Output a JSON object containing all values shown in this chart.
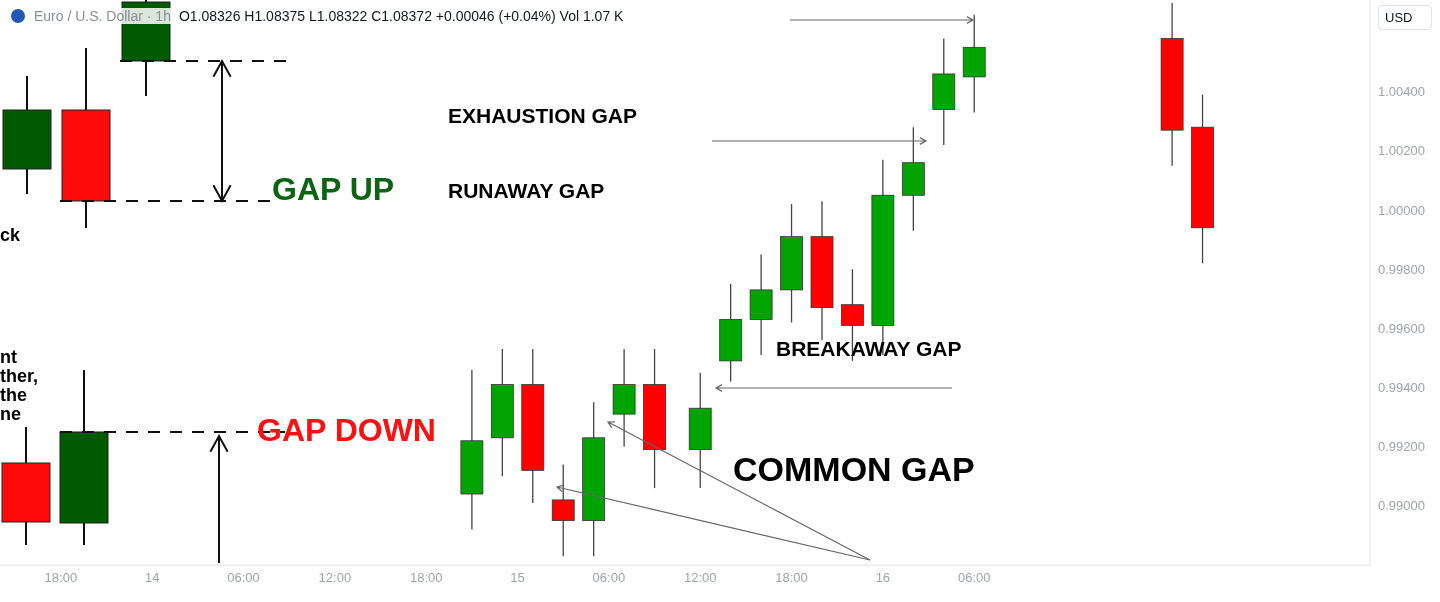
{
  "chart_data": {
    "type": "candlestick",
    "title": "Euro / U.S. Dollar · 1h",
    "subtitle": "O1.08326 H1.08375 L1.08322 C1.08372 +0.00046 (+0.04%) Vol 1.07 K",
    "ylabel": "USD",
    "categories": [
      null,
      null,
      null,
      null,
      "18:00",
      null,
      null,
      null,
      null,
      null,
      "14",
      null,
      null,
      null,
      null,
      null,
      "06:00",
      null,
      null,
      null,
      null,
      null,
      "12:00",
      null,
      null,
      null,
      null,
      null,
      "18:00",
      null,
      null,
      null,
      null,
      null,
      "15",
      null,
      null,
      null,
      null,
      null,
      "06:00",
      null,
      null,
      null,
      null,
      null,
      "12:00",
      null,
      null,
      null,
      null,
      null,
      "18:00",
      null,
      null,
      null,
      null,
      null,
      "16",
      null,
      null,
      null,
      null,
      null,
      "06:00",
      null,
      null,
      null,
      null,
      null,
      null,
      null,
      null,
      null,
      null,
      null,
      null,
      null,
      null,
      null,
      null,
      null,
      null,
      null,
      null,
      null,
      null,
      null,
      null,
      null,
      null
    ],
    "ohlc": [
      null,
      null,
      null,
      null,
      null,
      null,
      null,
      null,
      null,
      null,
      null,
      null,
      null,
      null,
      null,
      null,
      null,
      null,
      null,
      null,
      null,
      null,
      null,
      null,
      null,
      null,
      null,
      null,
      null,
      null,
      null,
      [
        0.9904,
        0.9946,
        0.9892,
        0.9922
      ],
      null,
      [
        0.9923,
        0.9953,
        0.991,
        0.9941
      ],
      null,
      [
        0.9941,
        0.9953,
        0.9901,
        0.9912
      ],
      null,
      [
        0.9902,
        0.9914,
        0.9883,
        0.9895
      ],
      null,
      [
        0.9895,
        0.9935,
        0.9883,
        0.9923
      ],
      null,
      [
        0.9931,
        0.9953,
        0.992,
        0.9941
      ],
      null,
      [
        0.9941,
        0.9953,
        0.9906,
        0.9919
      ],
      null,
      null,
      [
        0.9919,
        0.9945,
        0.9906,
        0.9933
      ],
      null,
      [
        0.9949,
        0.9975,
        0.9942,
        0.9963
      ],
      null,
      [
        0.9963,
        0.9985,
        0.9951,
        0.9973
      ],
      null,
      [
        0.9973,
        1.0002,
        0.9962,
        0.9991
      ],
      null,
      [
        0.9991,
        1.0003,
        0.9956,
        0.9967
      ],
      null,
      [
        0.9968,
        0.998,
        0.9949,
        0.9961
      ],
      null,
      [
        0.9961,
        1.0017,
        0.9951,
        1.0005
      ],
      null,
      [
        1.0005,
        1.0028,
        0.9993,
        1.0016
      ],
      null,
      [
        1.0034,
        1.0058,
        1.0022,
        1.0046
      ],
      null,
      [
        1.0045,
        1.0066,
        1.0033,
        1.0055
      ],
      null,
      null,
      null,
      null,
      null,
      null,
      null,
      null,
      null,
      null,
      null,
      null,
      [
        1.0058,
        1.007,
        1.0015,
        1.0027
      ],
      null,
      [
        1.0028,
        1.0039,
        0.9982,
        0.9994
      ],
      null,
      null,
      null,
      null,
      null,
      null,
      null,
      null,
      null,
      null,
      null
    ],
    "colors": [
      null,
      null,
      null,
      null,
      null,
      null,
      null,
      null,
      null,
      null,
      null,
      null,
      null,
      null,
      null,
      null,
      null,
      null,
      null,
      null,
      null,
      null,
      null,
      null,
      null,
      null,
      null,
      null,
      null,
      null,
      null,
      "#00a400",
      null,
      "#00a400",
      null,
      "#ff0000",
      null,
      "#ff0000",
      null,
      "#00a400",
      null,
      "#00a400",
      null,
      "#ff0000",
      null,
      null,
      "#00a400",
      null,
      "#00a400",
      null,
      "#00a400",
      null,
      "#00a400",
      null,
      "#ff0000",
      null,
      "#ff0000",
      null,
      "#00a400",
      null,
      "#00a400",
      null,
      "#00a400",
      null,
      "#00a400",
      null,
      null,
      null,
      null,
      null,
      null,
      null,
      null,
      null,
      null,
      null,
      null,
      "#ff0000",
      null,
      "#ff0000",
      null,
      null,
      null,
      null,
      null,
      null,
      null,
      null,
      null,
      null,
      null
    ],
    "ylim": [
      0.988,
      1.0071
    ],
    "yticks": [
      {
        "value": 0.99,
        "label": "0.99000"
      },
      {
        "value": 0.992,
        "label": "0.99200"
      },
      {
        "value": 0.994,
        "label": "0.99400"
      },
      {
        "value": 0.996,
        "label": "0.99600"
      },
      {
        "value": 0.998,
        "label": "0.99800"
      },
      {
        "value": 1.0,
        "label": "1.00000"
      },
      {
        "value": 1.002,
        "label": "1.00200"
      },
      {
        "value": 1.004,
        "label": "1.00400"
      }
    ],
    "grid": false,
    "annotations": [
      "EXHAUSTION GAP",
      "RUNAWAY GAP",
      "BREAKAWAY GAP",
      "COMMON GAP",
      "GAP UP",
      "GAP DOWN",
      "ck",
      "nt\nther,\nthe\nne"
    ]
  }
}
